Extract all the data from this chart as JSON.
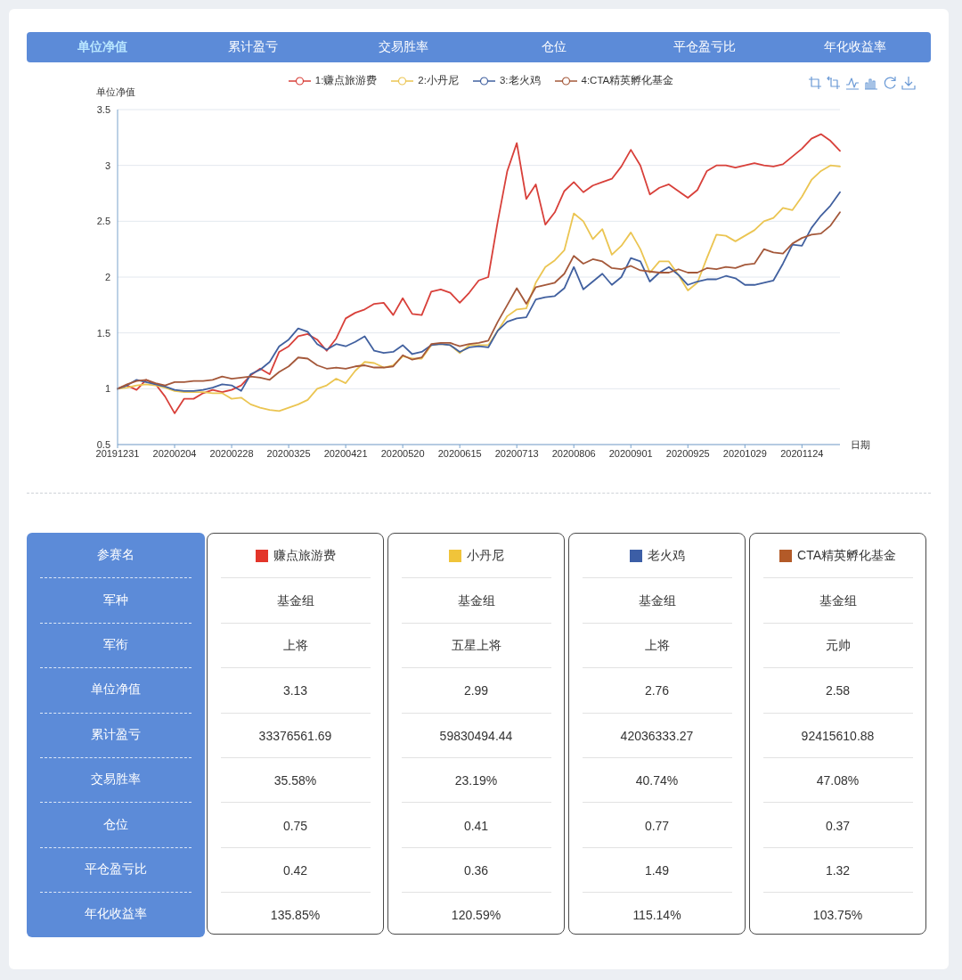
{
  "chart_data": [
    {
      "type": "line",
      "annotations": [
        "单位净值",
        "累计盈亏",
        "交易胜率",
        "仓位",
        "平仓盈亏比",
        "年化收益率"
      ],
      "xlabel": "日期",
      "ylabel": "单位净值",
      "categories": [
        "20191231",
        null,
        null,
        null,
        null,
        null,
        "20200204",
        null,
        null,
        null,
        null,
        null,
        "20200228",
        null,
        null,
        null,
        null,
        null,
        "20200325",
        null,
        null,
        null,
        null,
        null,
        "20200421",
        null,
        null,
        null,
        null,
        null,
        "20200520",
        null,
        null,
        null,
        null,
        null,
        "20200615",
        null,
        null,
        null,
        null,
        null,
        "20200713",
        null,
        null,
        null,
        null,
        null,
        "20200806",
        null,
        null,
        null,
        null,
        null,
        "20200901",
        null,
        null,
        null,
        null,
        null,
        "20200925",
        null,
        null,
        null,
        null,
        null,
        "20201029",
        null,
        null,
        null,
        null,
        null,
        "20201124",
        null,
        null,
        null,
        null
      ],
      "series": [
        {
          "name": "1:赚点旅游费",
          "color": "#d8403a",
          "values": [
            1.0,
            1.03,
            0.99,
            1.08,
            1.04,
            0.93,
            0.78,
            0.91,
            0.91,
            0.96,
            0.99,
            0.97,
            0.99,
            1.03,
            1.12,
            1.18,
            1.13,
            1.33,
            1.38,
            1.47,
            1.49,
            1.44,
            1.34,
            1.45,
            1.63,
            1.68,
            1.71,
            1.76,
            1.77,
            1.66,
            1.81,
            1.67,
            1.66,
            1.87,
            1.89,
            1.86,
            1.77,
            1.86,
            1.97,
            2.0,
            2.5,
            2.95,
            3.2,
            2.7,
            2.83,
            2.47,
            2.58,
            2.77,
            2.85,
            2.76,
            2.82,
            2.85,
            2.88,
            2.99,
            3.14,
            3.0,
            2.74,
            2.8,
            2.83,
            2.77,
            2.71,
            2.78,
            2.95,
            3.0,
            3.0,
            2.98,
            3.0,
            3.02,
            3.0,
            2.99,
            3.01,
            3.08,
            3.15,
            3.24,
            3.28,
            3.22,
            3.13
          ]
        },
        {
          "name": "2:小丹尼",
          "color": "#ebc552",
          "values": [
            1.0,
            1.01,
            1.03,
            1.04,
            1.03,
            1.01,
            0.98,
            0.97,
            0.97,
            0.97,
            0.96,
            0.96,
            0.91,
            0.92,
            0.86,
            0.83,
            0.81,
            0.8,
            0.83,
            0.86,
            0.9,
            1.0,
            1.03,
            1.09,
            1.05,
            1.16,
            1.24,
            1.23,
            1.19,
            1.21,
            1.29,
            1.27,
            1.27,
            1.39,
            1.4,
            1.39,
            1.32,
            1.39,
            1.39,
            1.39,
            1.52,
            1.65,
            1.71,
            1.72,
            1.95,
            2.09,
            2.15,
            2.24,
            2.57,
            2.5,
            2.34,
            2.43,
            2.2,
            2.28,
            2.4,
            2.25,
            2.04,
            2.14,
            2.14,
            2.02,
            1.88,
            1.95,
            2.17,
            2.38,
            2.37,
            2.32,
            2.37,
            2.42,
            2.5,
            2.53,
            2.62,
            2.6,
            2.72,
            2.87,
            2.95,
            3.0,
            2.99
          ]
        },
        {
          "name": "3:老火鸡",
          "color": "#41609f",
          "values": [
            1.0,
            1.03,
            1.08,
            1.06,
            1.04,
            1.02,
            0.99,
            0.98,
            0.98,
            0.99,
            1.01,
            1.04,
            1.03,
            0.98,
            1.13,
            1.17,
            1.24,
            1.38,
            1.44,
            1.54,
            1.51,
            1.4,
            1.35,
            1.4,
            1.38,
            1.42,
            1.47,
            1.34,
            1.32,
            1.33,
            1.39,
            1.31,
            1.33,
            1.39,
            1.4,
            1.39,
            1.33,
            1.37,
            1.38,
            1.37,
            1.52,
            1.6,
            1.63,
            1.64,
            1.8,
            1.82,
            1.83,
            1.9,
            2.09,
            1.89,
            1.96,
            2.03,
            1.93,
            2.0,
            2.17,
            2.14,
            1.96,
            2.04,
            2.09,
            2.02,
            1.93,
            1.96,
            1.98,
            1.98,
            2.01,
            1.99,
            1.93,
            1.93,
            1.95,
            1.97,
            2.12,
            2.29,
            2.28,
            2.44,
            2.55,
            2.64,
            2.76
          ]
        },
        {
          "name": "4:CTA精英孵化基金",
          "color": "#a4583a",
          "values": [
            1.0,
            1.04,
            1.07,
            1.08,
            1.05,
            1.03,
            1.06,
            1.06,
            1.07,
            1.07,
            1.08,
            1.11,
            1.09,
            1.1,
            1.11,
            1.1,
            1.08,
            1.15,
            1.2,
            1.28,
            1.27,
            1.21,
            1.18,
            1.19,
            1.18,
            1.2,
            1.21,
            1.19,
            1.19,
            1.2,
            1.3,
            1.26,
            1.28,
            1.4,
            1.41,
            1.41,
            1.38,
            1.4,
            1.41,
            1.43,
            1.6,
            1.75,
            1.9,
            1.76,
            1.91,
            1.93,
            1.95,
            2.03,
            2.19,
            2.12,
            2.16,
            2.14,
            2.08,
            2.07,
            2.1,
            2.06,
            2.05,
            2.04,
            2.04,
            2.07,
            2.04,
            2.04,
            2.08,
            2.07,
            2.09,
            2.08,
            2.11,
            2.12,
            2.25,
            2.22,
            2.21,
            2.3,
            2.35,
            2.38,
            2.39,
            2.46,
            2.58
          ]
        }
      ],
      "ylim": [
        0.5,
        3.5
      ],
      "yticks": [
        0.5,
        1,
        1.5,
        2,
        2.5,
        3,
        3.5
      ],
      "grid": "y",
      "legend": "top"
    },
    {
      "type": "other",
      "xlabel": "参赛名",
      "categories": [
        "赚点旅游费",
        "小丹尼",
        "老火鸡",
        "CTA精英孵化基金"
      ],
      "colors": [
        "#e3352a",
        "#f0c43a",
        "#3c5ea6",
        "#b35a28"
      ],
      "y_categories": [
        "军种",
        "军衔",
        "单位净值",
        "累计盈亏",
        "交易胜率",
        "仓位",
        "平仓盈亏比",
        "年化收益率"
      ],
      "cell_labels": [
        [
          "基金组",
          "基金组",
          "基金组",
          "基金组"
        ],
        [
          "上将",
          "五星上将",
          "上将",
          "元帅"
        ],
        [
          "3.13",
          "2.99",
          "2.76",
          "2.58"
        ],
        [
          "33376561.69",
          "59830494.44",
          "42036333.27",
          "92415610.88"
        ],
        [
          "35.58%",
          "23.19%",
          "40.74%",
          "47.08%"
        ],
        [
          "0.75",
          "0.41",
          "0.77",
          "0.37"
        ],
        [
          "0.42",
          "0.36",
          "1.49",
          "1.32"
        ],
        [
          "135.85%",
          "120.59%",
          "115.14%",
          "103.75%"
        ]
      ]
    }
  ]
}
